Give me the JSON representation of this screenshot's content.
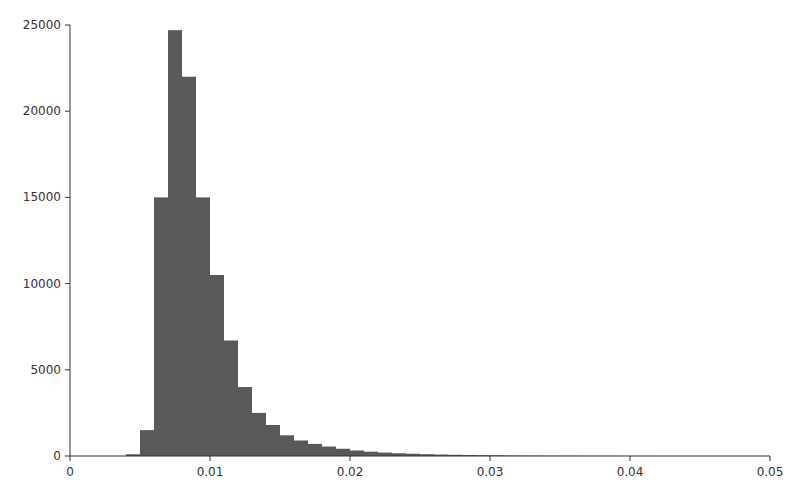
{
  "chart_data": {
    "type": "histogram",
    "bins": [
      0.004,
      0.005,
      0.006,
      0.007,
      0.008,
      0.009,
      0.01,
      0.011,
      0.012,
      0.013,
      0.014,
      0.015,
      0.016,
      0.017,
      0.018,
      0.019,
      0.02,
      0.021,
      0.022,
      0.023,
      0.024,
      0.025,
      0.026,
      0.027,
      0.028,
      0.029,
      0.03,
      0.031,
      0.032,
      0.033,
      0.034,
      0.035,
      0.036,
      0.037,
      0.038,
      0.039,
      0.04,
      0.041,
      0.042,
      0.043,
      0.044,
      0.045
    ],
    "values": [
      100,
      1500,
      15000,
      24700,
      22000,
      15000,
      10500,
      6700,
      4000,
      2500,
      1800,
      1200,
      900,
      700,
      550,
      420,
      320,
      250,
      200,
      160,
      130,
      105,
      85,
      70,
      58,
      47,
      38,
      30,
      24,
      19,
      15,
      12,
      10,
      8,
      6,
      5,
      4,
      3,
      2,
      2,
      1
    ],
    "color": "#595959",
    "xlim": [
      0.0,
      0.05
    ],
    "ylim": [
      0,
      25000
    ],
    "xticks": [
      0.0,
      0.01,
      0.02,
      0.03,
      0.04,
      0.05
    ],
    "yticks": [
      0,
      5000,
      10000,
      15000,
      20000,
      25000
    ]
  }
}
